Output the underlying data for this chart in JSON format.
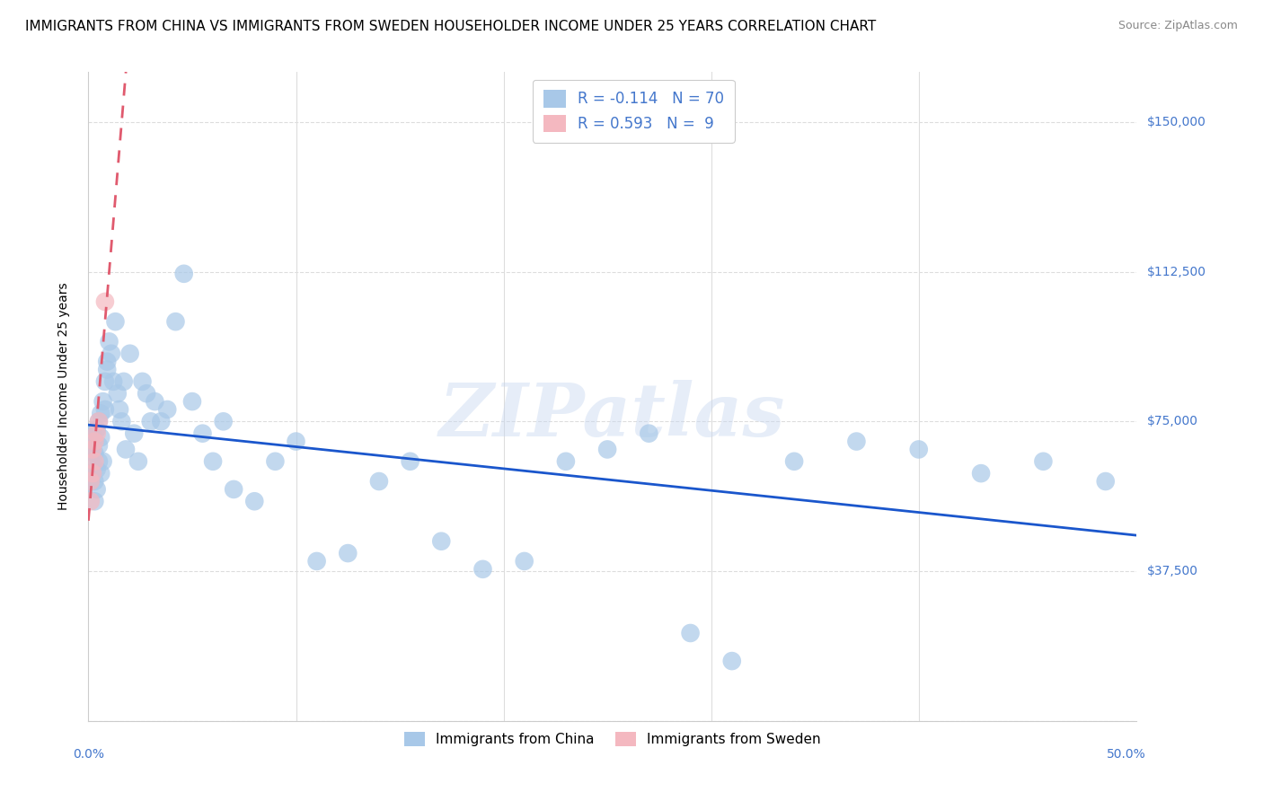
{
  "title": "IMMIGRANTS FROM CHINA VS IMMIGRANTS FROM SWEDEN HOUSEHOLDER INCOME UNDER 25 YEARS CORRELATION CHART",
  "source": "Source: ZipAtlas.com",
  "ylabel": "Householder Income Under 25 years",
  "watermark": "ZIPatlas",
  "xlim": [
    0.0,
    0.505
  ],
  "ylim": [
    0,
    162500
  ],
  "yticks": [
    0,
    37500,
    75000,
    112500,
    150000
  ],
  "xtick_left": "0.0%",
  "xtick_right": "50.0%",
  "china_color": "#a8c8e8",
  "sweden_color": "#f4b8c0",
  "regression_china_color": "#1a56cc",
  "regression_sweden_color": "#e05a6e",
  "legend_china_color": "#a8c8e8",
  "legend_sweden_color": "#f4b8c0",
  "china_R": -0.114,
  "china_N": 70,
  "sweden_R": 0.593,
  "sweden_N": 9,
  "china_x": [
    0.001,
    0.001,
    0.002,
    0.002,
    0.002,
    0.003,
    0.003,
    0.003,
    0.003,
    0.004,
    0.004,
    0.004,
    0.005,
    0.005,
    0.005,
    0.006,
    0.006,
    0.006,
    0.007,
    0.007,
    0.008,
    0.008,
    0.009,
    0.009,
    0.01,
    0.011,
    0.012,
    0.013,
    0.014,
    0.015,
    0.016,
    0.017,
    0.018,
    0.02,
    0.022,
    0.024,
    0.026,
    0.028,
    0.03,
    0.032,
    0.035,
    0.038,
    0.042,
    0.046,
    0.05,
    0.055,
    0.06,
    0.065,
    0.07,
    0.08,
    0.09,
    0.1,
    0.11,
    0.125,
    0.14,
    0.155,
    0.17,
    0.19,
    0.21,
    0.23,
    0.25,
    0.27,
    0.29,
    0.31,
    0.34,
    0.37,
    0.4,
    0.43,
    0.46,
    0.49
  ],
  "china_y": [
    65000,
    60000,
    72000,
    62000,
    68000,
    55000,
    60000,
    67000,
    70000,
    63000,
    73000,
    58000,
    75000,
    65000,
    69000,
    62000,
    77000,
    71000,
    80000,
    65000,
    85000,
    78000,
    90000,
    88000,
    95000,
    92000,
    85000,
    100000,
    82000,
    78000,
    75000,
    85000,
    68000,
    92000,
    72000,
    65000,
    85000,
    82000,
    75000,
    80000,
    75000,
    78000,
    100000,
    112000,
    80000,
    72000,
    65000,
    75000,
    58000,
    55000,
    65000,
    70000,
    40000,
    42000,
    60000,
    65000,
    45000,
    38000,
    40000,
    65000,
    68000,
    72000,
    22000,
    15000,
    65000,
    70000,
    68000,
    62000,
    65000,
    60000
  ],
  "sweden_x": [
    0.001,
    0.001,
    0.002,
    0.002,
    0.003,
    0.003,
    0.004,
    0.005,
    0.008
  ],
  "sweden_y": [
    55000,
    60000,
    62000,
    68000,
    65000,
    70000,
    72000,
    75000,
    105000
  ],
  "background_color": "#ffffff",
  "grid_color": "#dddddd",
  "axis_color": "#cccccc",
  "title_fontsize": 11,
  "ylabel_fontsize": 10,
  "tick_fontsize": 10,
  "tick_color": "#4477cc",
  "source_color": "#888888"
}
